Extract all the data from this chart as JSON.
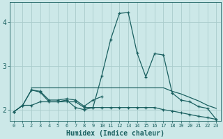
{
  "xlabel": "Humidex (Indice chaleur)",
  "bg_color": "#cce8e8",
  "grid_color": "#aacccc",
  "line_color": "#1a6060",
  "xlim": [
    -0.5,
    23.5
  ],
  "ylim": [
    1.75,
    4.45
  ],
  "xticks": [
    0,
    1,
    2,
    3,
    4,
    5,
    6,
    7,
    8,
    9,
    10,
    11,
    12,
    13,
    14,
    15,
    16,
    17,
    18,
    19,
    20,
    21,
    22,
    23
  ],
  "yticks": [
    2,
    3,
    4
  ],
  "line1_x": [
    0,
    1,
    2,
    3,
    4,
    5,
    6,
    7,
    8,
    9,
    10,
    11,
    12,
    13,
    14,
    15,
    16,
    17,
    18,
    19,
    20,
    21,
    22,
    23
  ],
  "line1_y": [
    1.95,
    2.1,
    2.45,
    2.4,
    2.18,
    2.18,
    2.22,
    2.05,
    2.0,
    2.05,
    2.78,
    3.6,
    4.2,
    4.22,
    3.3,
    2.75,
    3.28,
    3.25,
    2.38,
    2.22,
    2.18,
    2.07,
    2.03,
    1.78
  ],
  "line2_x": [
    0,
    1,
    2,
    3,
    4,
    5,
    6,
    7,
    8,
    9,
    10
  ],
  "line2_y": [
    1.95,
    2.1,
    2.45,
    2.42,
    2.22,
    2.22,
    2.25,
    2.22,
    2.08,
    2.22,
    2.3
  ],
  "line3_x": [
    2,
    3,
    4,
    5,
    6,
    7,
    8,
    9,
    10,
    11,
    12,
    13,
    14,
    15,
    16,
    17,
    18,
    19,
    20,
    21,
    22,
    23
  ],
  "line3_y": [
    2.5,
    2.5,
    2.5,
    2.5,
    2.5,
    2.5,
    2.5,
    2.5,
    2.5,
    2.5,
    2.5,
    2.5,
    2.5,
    2.5,
    2.5,
    2.5,
    2.42,
    2.36,
    2.28,
    2.2,
    2.1,
    2.03
  ],
  "line4_x": [
    0,
    1,
    2,
    3,
    4,
    5,
    6,
    7,
    8,
    9,
    10,
    11,
    12,
    13,
    14,
    15,
    16,
    17,
    18,
    19,
    20,
    21,
    22,
    23
  ],
  "line4_y": [
    1.95,
    2.1,
    2.1,
    2.18,
    2.18,
    2.18,
    2.18,
    2.18,
    2.05,
    2.05,
    2.05,
    2.05,
    2.05,
    2.05,
    2.05,
    2.05,
    2.05,
    2.0,
    1.97,
    1.93,
    1.89,
    1.85,
    1.82,
    1.78
  ]
}
